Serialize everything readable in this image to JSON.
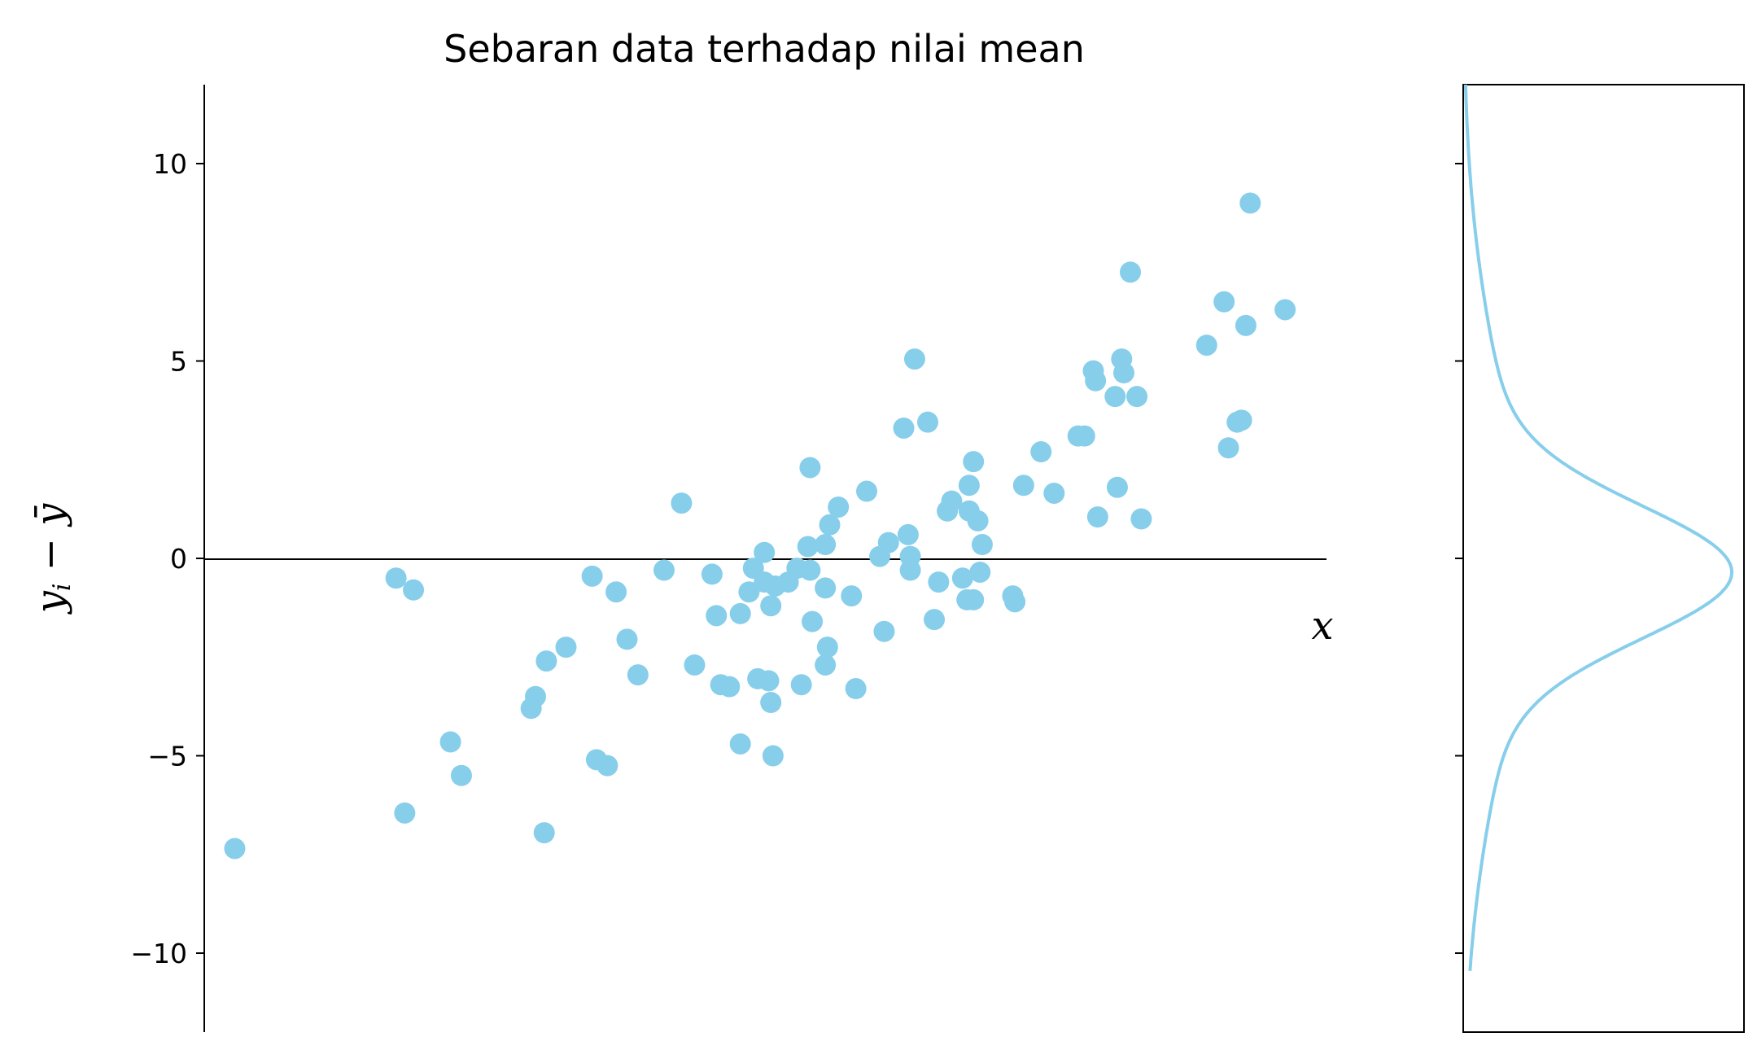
{
  "chart_data": [
    {
      "type": "scatter",
      "title": "Sebaran data terhadap nilai mean",
      "xlabel": "x",
      "ylabel": "y_i − ȳ",
      "ylim": [
        -12,
        12
      ],
      "yticks": [
        {
          "value": 10,
          "label": "10"
        },
        {
          "value": 5,
          "label": "5"
        },
        {
          "value": 0,
          "label": "0"
        },
        {
          "value": -5,
          "label": "−5"
        },
        {
          "value": -10,
          "label": "−10"
        }
      ],
      "reference_line_y": 0,
      "grid": false,
      "color": "#87CEEB",
      "points": [
        [
          -2.56,
          -7.35
        ],
        [
          -1.82,
          -0.5
        ],
        [
          -1.78,
          -6.45
        ],
        [
          -1.74,
          -0.8
        ],
        [
          -1.57,
          -4.65
        ],
        [
          -1.52,
          -5.5
        ],
        [
          -1.2,
          -3.8
        ],
        [
          -1.18,
          -3.5
        ],
        [
          -1.14,
          -6.95
        ],
        [
          -1.13,
          -2.6
        ],
        [
          -1.04,
          -2.25
        ],
        [
          -0.92,
          -0.45
        ],
        [
          -0.9,
          -5.1
        ],
        [
          -0.85,
          -5.25
        ],
        [
          -0.81,
          -0.85
        ],
        [
          -0.76,
          -2.05
        ],
        [
          -0.71,
          -2.95
        ],
        [
          -0.59,
          -0.3
        ],
        [
          -0.51,
          1.4
        ],
        [
          -0.45,
          -2.7
        ],
        [
          -0.37,
          -0.4
        ],
        [
          -0.35,
          -1.45
        ],
        [
          -0.33,
          -3.2
        ],
        [
          -0.29,
          -3.25
        ],
        [
          -0.24,
          -1.4
        ],
        [
          -0.24,
          -4.7
        ],
        [
          -0.2,
          -0.85
        ],
        [
          -0.18,
          -0.25
        ],
        [
          -0.16,
          -3.05
        ],
        [
          -0.13,
          0.15
        ],
        [
          -0.13,
          -0.6
        ],
        [
          -0.11,
          -3.1
        ],
        [
          -0.1,
          -1.2
        ],
        [
          -0.1,
          -3.65
        ],
        [
          -0.09,
          -5.0
        ],
        [
          -0.08,
          -0.7
        ],
        [
          -0.02,
          -0.6
        ],
        [
          0.02,
          -0.25
        ],
        [
          0.04,
          -3.2
        ],
        [
          0.07,
          0.3
        ],
        [
          0.08,
          -0.3
        ],
        [
          0.08,
          2.3
        ],
        [
          0.09,
          -1.6
        ],
        [
          0.15,
          0.35
        ],
        [
          0.15,
          -0.75
        ],
        [
          0.15,
          -2.7
        ],
        [
          0.16,
          -2.25
        ],
        [
          0.17,
          0.85
        ],
        [
          0.21,
          1.3
        ],
        [
          0.27,
          -0.95
        ],
        [
          0.29,
          -3.3
        ],
        [
          0.34,
          1.7
        ],
        [
          0.4,
          0.05
        ],
        [
          0.42,
          -1.85
        ],
        [
          0.44,
          0.4
        ],
        [
          0.51,
          3.3
        ],
        [
          0.53,
          0.6
        ],
        [
          0.54,
          0.05
        ],
        [
          0.54,
          -0.3
        ],
        [
          0.56,
          5.05
        ],
        [
          0.62,
          3.45
        ],
        [
          0.65,
          -1.55
        ],
        [
          0.67,
          -0.6
        ],
        [
          0.71,
          1.2
        ],
        [
          0.73,
          1.45
        ],
        [
          0.78,
          -0.5
        ],
        [
          0.8,
          -1.05
        ],
        [
          0.81,
          1.85
        ],
        [
          0.81,
          1.2
        ],
        [
          0.83,
          -1.05
        ],
        [
          0.83,
          2.45
        ],
        [
          0.85,
          0.95
        ],
        [
          0.86,
          -0.35
        ],
        [
          0.87,
          0.35
        ],
        [
          1.01,
          -0.95
        ],
        [
          1.02,
          -1.1
        ],
        [
          1.06,
          1.85
        ],
        [
          1.14,
          2.7
        ],
        [
          1.2,
          1.65
        ],
        [
          1.31,
          3.1
        ],
        [
          1.34,
          3.1
        ],
        [
          1.38,
          4.75
        ],
        [
          1.39,
          4.5
        ],
        [
          1.4,
          1.05
        ],
        [
          1.48,
          4.1
        ],
        [
          1.49,
          1.8
        ],
        [
          1.51,
          5.05
        ],
        [
          1.52,
          4.7
        ],
        [
          1.55,
          7.25
        ],
        [
          1.58,
          4.1
        ],
        [
          1.6,
          1.0
        ],
        [
          1.9,
          5.4
        ],
        [
          1.98,
          6.5
        ],
        [
          2.0,
          2.8
        ],
        [
          2.04,
          3.45
        ],
        [
          2.06,
          3.5
        ],
        [
          2.08,
          5.9
        ],
        [
          2.1,
          9.0
        ],
        [
          2.26,
          6.3
        ]
      ]
    },
    {
      "type": "line",
      "name": "marginal-density",
      "ylim": [
        -12,
        12
      ],
      "density_mean": -0.35,
      "density_sd": 3.9,
      "kurtosis_shape": "peaked",
      "color": "#87CEEB"
    }
  ]
}
